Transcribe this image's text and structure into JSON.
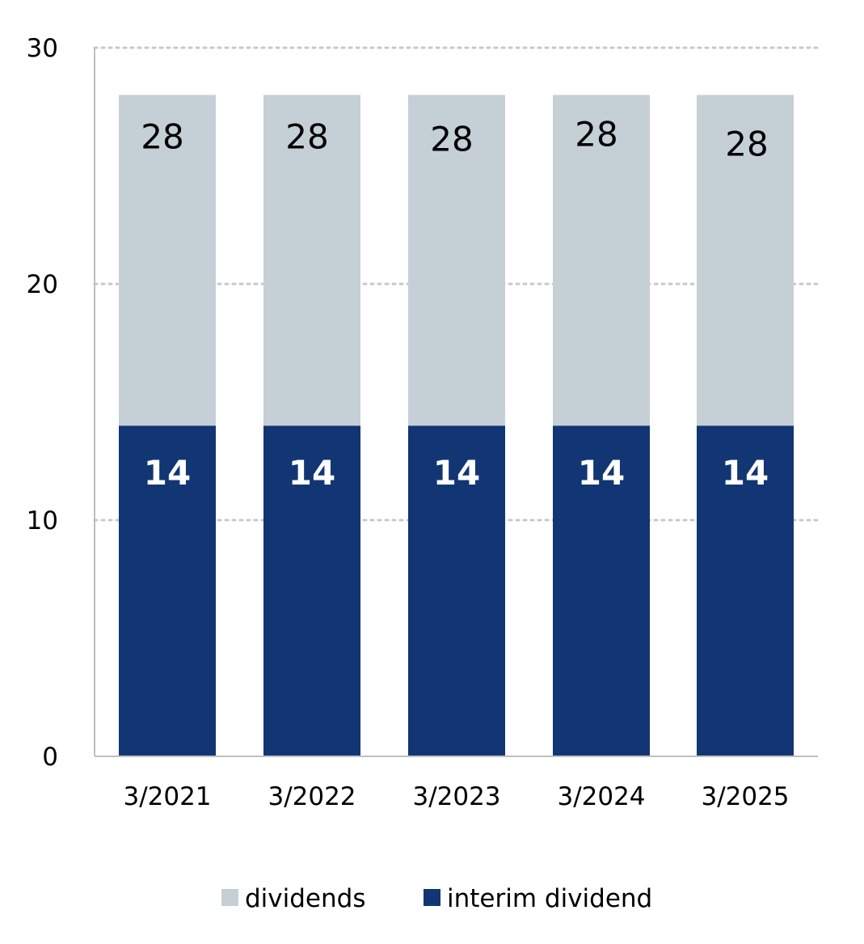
{
  "chart_data": {
    "type": "bar",
    "stacked": true,
    "title": "",
    "xlabel": "",
    "ylabel": "",
    "ylim": [
      0,
      30
    ],
    "yticks": [
      0,
      10,
      20,
      30
    ],
    "grid": true,
    "categories": [
      "3/2021",
      "3/2022",
      "3/2023",
      "3/2024",
      "3/2025"
    ],
    "series": [
      {
        "name": "interim dividend",
        "values": [
          14,
          14,
          14,
          14,
          14
        ],
        "color": "#113673",
        "labels": [
          "14",
          "14",
          "14",
          "14",
          "14"
        ]
      },
      {
        "name": "dividends",
        "values": [
          14,
          14,
          14,
          14,
          14
        ],
        "color": "#c5cfd6",
        "labels": [
          "28",
          "28",
          "28",
          "28",
          "28"
        ]
      }
    ],
    "legend": [
      "dividends",
      "interim dividend"
    ],
    "legend_position": "bottom"
  }
}
